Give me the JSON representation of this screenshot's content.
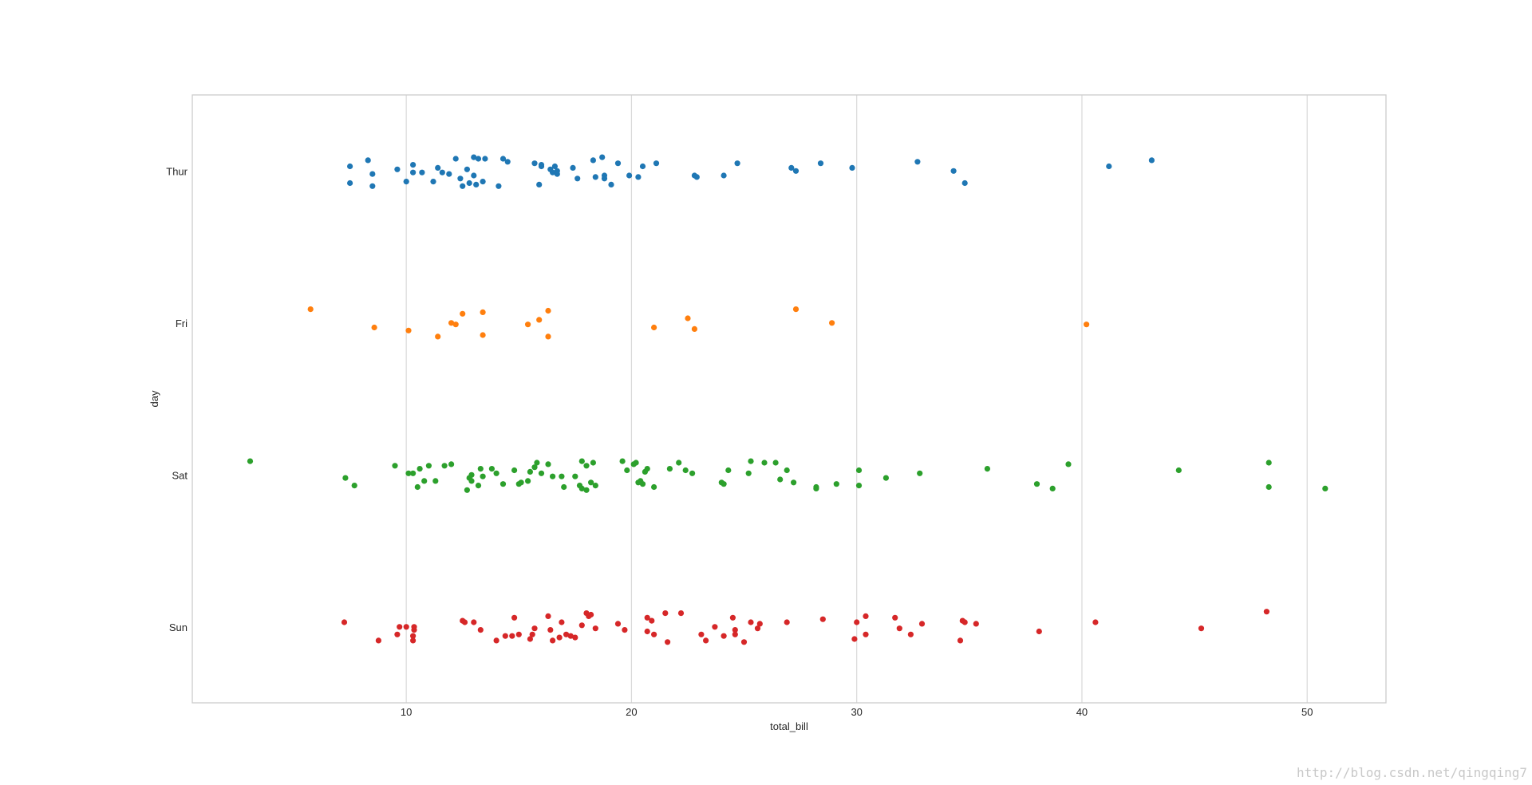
{
  "chart_data": {
    "type": "scatter",
    "orientation": "horizontal",
    "xlabel": "total_bill",
    "ylabel": "day",
    "xlim": [
      0.5,
      53.5
    ],
    "x_ticks": [
      10,
      20,
      30,
      40,
      50
    ],
    "categories": [
      "Thur",
      "Fri",
      "Sat",
      "Sun"
    ],
    "grid": "vertical",
    "legend": "none",
    "series": [
      {
        "category": "Thur",
        "color": "#1f77b4",
        "points": [
          [
            7.5,
            0.08
          ],
          [
            7.5,
            -0.03
          ],
          [
            8.3,
            -0.07
          ],
          [
            8.5,
            0.1
          ],
          [
            8.5,
            0.02
          ],
          [
            9.6,
            -0.01
          ],
          [
            10.0,
            0.07
          ],
          [
            10.3,
            -0.04
          ],
          [
            10.3,
            0.01
          ],
          [
            10.7,
            0.01
          ],
          [
            11.2,
            0.07
          ],
          [
            11.4,
            -0.02
          ],
          [
            11.6,
            0.01
          ],
          [
            11.9,
            0.02
          ],
          [
            12.2,
            -0.08
          ],
          [
            12.4,
            0.05
          ],
          [
            12.5,
            0.1
          ],
          [
            12.7,
            -0.01
          ],
          [
            12.8,
            0.08
          ],
          [
            13.0,
            -0.09
          ],
          [
            13.0,
            0.03
          ],
          [
            13.1,
            0.09
          ],
          [
            13.2,
            -0.08
          ],
          [
            13.4,
            0.07
          ],
          [
            13.5,
            -0.08
          ],
          [
            14.1,
            0.1
          ],
          [
            14.3,
            -0.08
          ],
          [
            14.5,
            -0.06
          ],
          [
            15.7,
            -0.05
          ],
          [
            15.9,
            0.09
          ],
          [
            16.0,
            -0.03
          ],
          [
            16.0,
            -0.04
          ],
          [
            16.4,
            -0.01
          ],
          [
            16.5,
            0.01
          ],
          [
            16.6,
            -0.03
          ],
          [
            16.7,
            0.02
          ],
          [
            16.7,
            0.0
          ],
          [
            17.4,
            -0.02
          ],
          [
            17.6,
            0.05
          ],
          [
            18.3,
            -0.07
          ],
          [
            18.4,
            0.04
          ],
          [
            18.7,
            -0.09
          ],
          [
            18.8,
            0.03
          ],
          [
            18.8,
            0.05
          ],
          [
            19.1,
            0.09
          ],
          [
            19.4,
            -0.05
          ],
          [
            19.9,
            0.03
          ],
          [
            20.3,
            0.04
          ],
          [
            20.5,
            -0.03
          ],
          [
            21.1,
            -0.05
          ],
          [
            22.8,
            0.03
          ],
          [
            22.9,
            0.04
          ],
          [
            24.1,
            0.03
          ],
          [
            24.7,
            -0.05
          ],
          [
            27.1,
            -0.02
          ],
          [
            27.3,
            0.0
          ],
          [
            28.4,
            -0.05
          ],
          [
            29.8,
            -0.02
          ],
          [
            32.7,
            -0.06
          ],
          [
            34.3,
            0.0
          ],
          [
            34.8,
            0.08
          ],
          [
            41.2,
            -0.03
          ],
          [
            43.1,
            -0.07
          ]
        ]
      },
      {
        "category": "Fri",
        "color": "#ff7f0e",
        "points": [
          [
            5.75,
            -0.09
          ],
          [
            8.58,
            0.03
          ],
          [
            10.1,
            0.05
          ],
          [
            11.4,
            0.09
          ],
          [
            12.0,
            0.0
          ],
          [
            12.2,
            0.01
          ],
          [
            12.5,
            -0.06
          ],
          [
            13.4,
            -0.07
          ],
          [
            13.4,
            0.08
          ],
          [
            15.4,
            0.01
          ],
          [
            15.9,
            -0.02
          ],
          [
            16.3,
            -0.08
          ],
          [
            16.3,
            0.09
          ],
          [
            21.0,
            0.03
          ],
          [
            22.5,
            -0.03
          ],
          [
            22.8,
            0.04
          ],
          [
            27.3,
            -0.09
          ],
          [
            28.9,
            0.0
          ],
          [
            40.2,
            0.01
          ]
        ]
      },
      {
        "category": "Sat",
        "color": "#2ca02c",
        "points": [
          [
            3.07,
            -0.09
          ],
          [
            7.3,
            0.02
          ],
          [
            7.7,
            0.07
          ],
          [
            9.5,
            -0.06
          ],
          [
            10.1,
            -0.01
          ],
          [
            10.3,
            -0.01
          ],
          [
            10.5,
            0.08
          ],
          [
            10.6,
            -0.04
          ],
          [
            10.8,
            0.04
          ],
          [
            11.0,
            -0.06
          ],
          [
            11.3,
            0.04
          ],
          [
            11.7,
            -0.06
          ],
          [
            12.0,
            -0.07
          ],
          [
            12.7,
            0.1
          ],
          [
            12.8,
            0.02
          ],
          [
            12.9,
            0.04
          ],
          [
            12.9,
            0.0
          ],
          [
            13.2,
            0.07
          ],
          [
            13.3,
            -0.04
          ],
          [
            13.4,
            0.01
          ],
          [
            13.8,
            -0.04
          ],
          [
            14.0,
            -0.01
          ],
          [
            14.3,
            0.06
          ],
          [
            14.8,
            -0.03
          ],
          [
            15.0,
            0.06
          ],
          [
            15.1,
            0.05
          ],
          [
            15.4,
            0.04
          ],
          [
            15.5,
            -0.02
          ],
          [
            15.7,
            -0.05
          ],
          [
            15.8,
            -0.08
          ],
          [
            16.0,
            -0.01
          ],
          [
            16.3,
            -0.07
          ],
          [
            16.5,
            0.01
          ],
          [
            16.9,
            0.01
          ],
          [
            17.0,
            0.08
          ],
          [
            17.5,
            0.01
          ],
          [
            17.7,
            0.07
          ],
          [
            17.8,
            -0.09
          ],
          [
            17.8,
            0.09
          ],
          [
            18.0,
            0.1
          ],
          [
            18.0,
            -0.06
          ],
          [
            18.2,
            0.05
          ],
          [
            18.3,
            -0.08
          ],
          [
            18.4,
            0.07
          ],
          [
            19.6,
            -0.09
          ],
          [
            19.8,
            -0.03
          ],
          [
            20.1,
            -0.07
          ],
          [
            20.2,
            -0.08
          ],
          [
            20.3,
            0.05
          ],
          [
            20.4,
            0.04
          ],
          [
            20.5,
            0.06
          ],
          [
            20.6,
            -0.02
          ],
          [
            20.7,
            -0.04
          ],
          [
            21.0,
            0.08
          ],
          [
            21.7,
            -0.04
          ],
          [
            22.1,
            -0.08
          ],
          [
            22.4,
            -0.03
          ],
          [
            22.7,
            -0.01
          ],
          [
            24.0,
            0.05
          ],
          [
            24.1,
            0.06
          ],
          [
            24.3,
            -0.03
          ],
          [
            25.2,
            -0.01
          ],
          [
            25.3,
            -0.09
          ],
          [
            25.9,
            -0.08
          ],
          [
            26.4,
            -0.08
          ],
          [
            26.6,
            0.03
          ],
          [
            26.9,
            -0.03
          ],
          [
            27.2,
            0.05
          ],
          [
            28.2,
            0.09
          ],
          [
            28.2,
            0.08
          ],
          [
            29.1,
            0.06
          ],
          [
            30.1,
            -0.03
          ],
          [
            30.1,
            0.07
          ],
          [
            31.3,
            0.02
          ],
          [
            32.8,
            -0.01
          ],
          [
            35.8,
            -0.04
          ],
          [
            38.0,
            0.06
          ],
          [
            38.7,
            0.09
          ],
          [
            39.4,
            -0.07
          ],
          [
            44.3,
            -0.03
          ],
          [
            48.3,
            0.08
          ],
          [
            48.3,
            -0.08
          ],
          [
            50.8,
            0.09
          ]
        ]
      },
      {
        "category": "Sun",
        "color": "#d62728",
        "points": [
          [
            7.25,
            -0.03
          ],
          [
            8.77,
            0.09
          ],
          [
            9.6,
            0.05
          ],
          [
            9.7,
            0.0
          ],
          [
            10.0,
            0.0
          ],
          [
            10.3,
            0.06
          ],
          [
            10.3,
            0.09
          ],
          [
            10.35,
            0.02
          ],
          [
            10.35,
            0.0
          ],
          [
            12.5,
            -0.04
          ],
          [
            12.6,
            -0.03
          ],
          [
            13.0,
            -0.03
          ],
          [
            13.3,
            0.02
          ],
          [
            14.0,
            0.09
          ],
          [
            14.4,
            0.06
          ],
          [
            14.7,
            0.06
          ],
          [
            14.8,
            -0.06
          ],
          [
            15.0,
            0.05
          ],
          [
            15.5,
            0.08
          ],
          [
            15.6,
            0.05
          ],
          [
            15.7,
            0.01
          ],
          [
            16.3,
            -0.07
          ],
          [
            16.4,
            0.02
          ],
          [
            16.5,
            0.09
          ],
          [
            16.8,
            0.07
          ],
          [
            16.9,
            -0.03
          ],
          [
            17.1,
            0.05
          ],
          [
            17.3,
            0.06
          ],
          [
            17.5,
            0.07
          ],
          [
            17.8,
            -0.01
          ],
          [
            18.0,
            -0.09
          ],
          [
            18.1,
            -0.07
          ],
          [
            18.2,
            -0.08
          ],
          [
            18.4,
            0.01
          ],
          [
            19.4,
            -0.02
          ],
          [
            19.7,
            0.02
          ],
          [
            20.7,
            0.03
          ],
          [
            20.7,
            -0.06
          ],
          [
            20.9,
            -0.04
          ],
          [
            21.0,
            0.05
          ],
          [
            21.5,
            -0.09
          ],
          [
            21.6,
            0.1
          ],
          [
            22.2,
            -0.09
          ],
          [
            23.1,
            0.05
          ],
          [
            23.3,
            0.09
          ],
          [
            23.7,
            0.0
          ],
          [
            24.1,
            0.06
          ],
          [
            24.5,
            -0.06
          ],
          [
            24.6,
            0.02
          ],
          [
            24.6,
            0.05
          ],
          [
            25.0,
            0.1
          ],
          [
            25.3,
            -0.03
          ],
          [
            25.6,
            0.01
          ],
          [
            25.7,
            -0.02
          ],
          [
            26.9,
            -0.03
          ],
          [
            28.5,
            -0.05
          ],
          [
            29.9,
            0.08
          ],
          [
            30.0,
            -0.03
          ],
          [
            30.4,
            0.05
          ],
          [
            30.4,
            -0.07
          ],
          [
            31.7,
            -0.06
          ],
          [
            31.9,
            0.01
          ],
          [
            32.4,
            0.05
          ],
          [
            32.9,
            -0.02
          ],
          [
            34.6,
            0.09
          ],
          [
            34.7,
            -0.04
          ],
          [
            34.8,
            -0.03
          ],
          [
            35.3,
            -0.02
          ],
          [
            38.1,
            0.03
          ],
          [
            40.6,
            -0.03
          ],
          [
            45.3,
            0.01
          ],
          [
            48.2,
            -0.1
          ]
        ]
      }
    ]
  },
  "watermark": "http://blog.csdn.net/qingqing7"
}
